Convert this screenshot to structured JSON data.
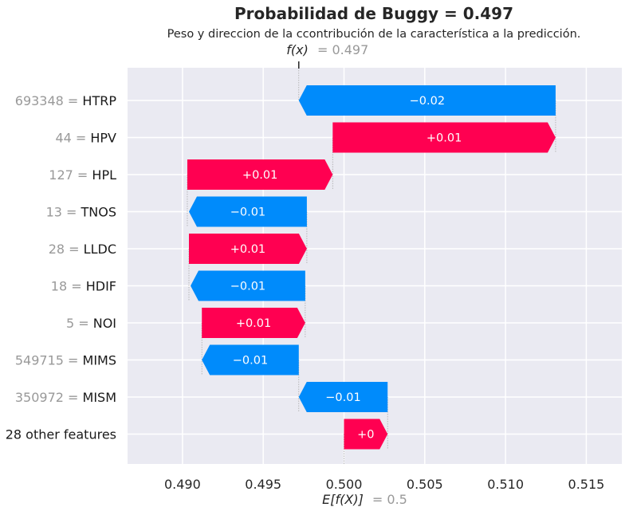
{
  "chart_data": {
    "type": "waterfall",
    "title": "Probabilidad de Buggy = 0.497",
    "subtitle": "Peso y direccion de la ccontribución de la característica a la predicción.",
    "fx_label": "f(x)",
    "fx_value": "= 0.497",
    "efx_label": "E[f(X)]",
    "efx_value": "= 0.5",
    "fx": 0.4972,
    "base": 0.5,
    "xlim": [
      0.4866,
      0.5172
    ],
    "xticks": [
      0.49,
      0.495,
      0.5,
      0.505,
      0.51,
      0.515
    ],
    "xtick_labels": [
      "0.490",
      "0.495",
      "0.500",
      "0.505",
      "0.510",
      "0.515"
    ],
    "grid": true,
    "colors": {
      "positive": "#ff0051",
      "negative": "#008bfb",
      "background": "#eaeaf2",
      "grid": "#ffffff"
    },
    "features": [
      {
        "value": "693348 =",
        "name": "HTRP",
        "start": 0.5131,
        "end": 0.4972,
        "label": "−0.02"
      },
      {
        "value": "44 =",
        "name": "HPV",
        "start": 0.4993,
        "end": 0.5131,
        "label": "+0.01"
      },
      {
        "value": "127 =",
        "name": "HPL",
        "start": 0.4903,
        "end": 0.4993,
        "label": "+0.01"
      },
      {
        "value": "13 =",
        "name": "TNOS",
        "start": 0.4977,
        "end": 0.4904,
        "label": "−0.01"
      },
      {
        "value": "28 =",
        "name": "LLDC",
        "start": 0.4904,
        "end": 0.4977,
        "label": "+0.01"
      },
      {
        "value": "18 =",
        "name": "HDIF",
        "start": 0.4976,
        "end": 0.4905,
        "label": "−0.01"
      },
      {
        "value": "5 =",
        "name": "NOI",
        "start": 0.4912,
        "end": 0.4976,
        "label": "+0.01"
      },
      {
        "value": "549715 =",
        "name": "MIMS",
        "start": 0.4972,
        "end": 0.4912,
        "label": "−0.01"
      },
      {
        "value": "350972 =",
        "name": "MISM",
        "start": 0.5027,
        "end": 0.4972,
        "label": "−0.01"
      },
      {
        "value": "",
        "name": "28 other features",
        "start": 0.5,
        "end": 0.5027,
        "label": "+0"
      }
    ]
  }
}
